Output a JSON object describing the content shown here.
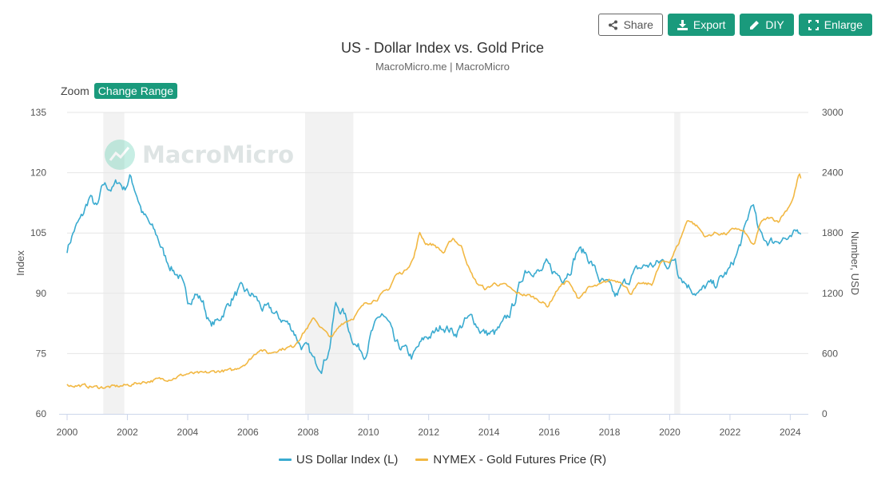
{
  "toolbar": {
    "share_label": "Share",
    "export_label": "Export",
    "diy_label": "DIY",
    "enlarge_label": "Enlarge"
  },
  "zoom": {
    "label": "Zoom",
    "button_label": "Change Range"
  },
  "watermark": {
    "text": "MacroMicro"
  },
  "colors": {
    "accent": "#1a9a7c",
    "usd": "#3aabd0",
    "gold": "#f2b843",
    "recession": "#f2f2f2",
    "grid": "#e6e6e6"
  },
  "chart_data": {
    "type": "line",
    "title": "US - Dollar Index vs. Gold Price",
    "subtitle": "MacroMicro.me | MacroMicro",
    "ylabel_left": "Index",
    "ylabel_right": "Number, USD",
    "xlim": [
      2000,
      2024.6
    ],
    "ylim_left": [
      60,
      135
    ],
    "ylim_right": [
      0,
      3000
    ],
    "x_ticks": [
      "2000",
      "2002",
      "2004",
      "2006",
      "2008",
      "2010",
      "2012",
      "2014",
      "2016",
      "2018",
      "2020",
      "2022",
      "2024"
    ],
    "y_ticks_left": [
      "135",
      "120",
      "105",
      "90",
      "75",
      "60"
    ],
    "y_ticks_right": [
      "3000",
      "2400",
      "1800",
      "1200",
      "600",
      "0"
    ],
    "grid": true,
    "legend_position": "bottom",
    "recessions": [
      [
        2001.2,
        2001.9
      ],
      [
        2007.9,
        2009.5
      ],
      [
        2020.15,
        2020.35
      ]
    ],
    "series": [
      {
        "name": "US Dollar Index (L)",
        "axis": "left",
        "color": "#3aabd0",
        "x": [
          2000.0,
          2000.25,
          2000.5,
          2000.75,
          2001.0,
          2001.2,
          2001.5,
          2001.7,
          2001.9,
          2002.1,
          2002.3,
          2002.5,
          2002.75,
          2003.0,
          2003.25,
          2003.5,
          2003.75,
          2004.0,
          2004.25,
          2004.5,
          2004.75,
          2005.0,
          2005.25,
          2005.5,
          2005.75,
          2006.0,
          2006.25,
          2006.5,
          2006.75,
          2007.0,
          2007.25,
          2007.5,
          2007.75,
          2008.0,
          2008.2,
          2008.45,
          2008.7,
          2008.9,
          2009.2,
          2009.4,
          2009.6,
          2009.9,
          2010.1,
          2010.45,
          2010.7,
          2010.9,
          2011.2,
          2011.45,
          2011.7,
          2011.9,
          2012.2,
          2012.45,
          2012.7,
          2012.9,
          2013.2,
          2013.45,
          2013.7,
          2013.9,
          2014.2,
          2014.45,
          2014.7,
          2014.9,
          2015.2,
          2015.45,
          2015.7,
          2015.9,
          2016.2,
          2016.45,
          2016.7,
          2016.95,
          2017.2,
          2017.45,
          2017.7,
          2017.95,
          2018.2,
          2018.45,
          2018.7,
          2018.95,
          2019.25,
          2019.5,
          2019.75,
          2020.0,
          2020.2,
          2020.25,
          2020.5,
          2020.75,
          2021.0,
          2021.25,
          2021.5,
          2021.75,
          2022.0,
          2022.25,
          2022.5,
          2022.75,
          2022.95,
          2023.25,
          2023.5,
          2023.75,
          2024.0,
          2024.2,
          2024.35
        ],
        "values": [
          101,
          106,
          109,
          114,
          111,
          117,
          116,
          118,
          116,
          119,
          115,
          110,
          107,
          104,
          99,
          96,
          94,
          88,
          90,
          88,
          82,
          83,
          86,
          89,
          91,
          90,
          89,
          86,
          86,
          84,
          83,
          81,
          77,
          76,
          73,
          72,
          76,
          87,
          85,
          80,
          77,
          75,
          80,
          85,
          82,
          77,
          76,
          74,
          77,
          79,
          80,
          82,
          81,
          80,
          83,
          84,
          81,
          80,
          80,
          82,
          85,
          89,
          96,
          96,
          95,
          97,
          95,
          94,
          96,
          101,
          100,
          97,
          93,
          92,
          89,
          92,
          94,
          96,
          97,
          97,
          98,
          97,
          99,
          96,
          93,
          91,
          90,
          92,
          92,
          94,
          96,
          100,
          106,
          113,
          105,
          103,
          103,
          104,
          103,
          105,
          106
        ],
        "volatility": 1.2
      },
      {
        "name": "NYMEX - Gold Futures Price (R)",
        "axis": "right",
        "color": "#f2b843",
        "x": [
          2000.0,
          2000.5,
          2001.0,
          2001.5,
          2002.0,
          2002.5,
          2003.0,
          2003.5,
          2004.0,
          2004.5,
          2005.0,
          2005.5,
          2006.0,
          2006.4,
          2006.7,
          2007.0,
          2007.5,
          2008.0,
          2008.2,
          2008.6,
          2008.8,
          2009.1,
          2009.5,
          2009.9,
          2010.3,
          2010.7,
          2010.9,
          2011.2,
          2011.5,
          2011.7,
          2011.9,
          2012.2,
          2012.5,
          2012.8,
          2013.1,
          2013.4,
          2013.6,
          2013.9,
          2014.2,
          2014.6,
          2014.9,
          2015.3,
          2015.7,
          2015.95,
          2016.3,
          2016.6,
          2016.95,
          2017.3,
          2017.7,
          2018.0,
          2018.4,
          2018.7,
          2019.0,
          2019.4,
          2019.7,
          2020.0,
          2020.3,
          2020.6,
          2020.9,
          2021.2,
          2021.5,
          2021.9,
          2022.2,
          2022.5,
          2022.8,
          2023.0,
          2023.3,
          2023.6,
          2023.9,
          2024.1,
          2024.3,
          2024.35
        ],
        "values": [
          285,
          280,
          265,
          268,
          285,
          315,
          340,
          355,
          400,
          400,
          425,
          430,
          520,
          650,
          600,
          640,
          670,
          870,
          950,
          800,
          760,
          900,
          960,
          1100,
          1150,
          1250,
          1380,
          1420,
          1550,
          1800,
          1700,
          1680,
          1600,
          1750,
          1660,
          1400,
          1300,
          1240,
          1300,
          1270,
          1200,
          1180,
          1130,
          1070,
          1250,
          1330,
          1150,
          1250,
          1280,
          1330,
          1320,
          1200,
          1290,
          1290,
          1500,
          1520,
          1700,
          1940,
          1870,
          1760,
          1800,
          1790,
          1850,
          1800,
          1660,
          1900,
          1950,
          1920,
          2040,
          2150,
          2400,
          2330
        ],
        "volatility": 18
      }
    ]
  }
}
